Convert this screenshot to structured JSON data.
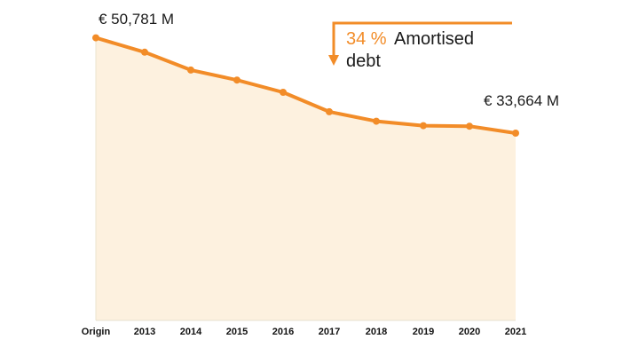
{
  "chart_data": {
    "type": "area",
    "categories": [
      "Origin",
      "2013",
      "2014",
      "2015",
      "2016",
      "2017",
      "2018",
      "2019",
      "2020",
      "2021"
    ],
    "values": [
      50781,
      48200,
      45000,
      43200,
      41000,
      37500,
      35800,
      35000,
      34900,
      33664
    ],
    "ylim": [
      0,
      52000
    ],
    "grid": false,
    "start_label": "€ 50,781 M",
    "end_label": "€ 33,664 M",
    "annotation": {
      "percent": "34 %",
      "text_line1": "Amortised",
      "text_line2": "debt"
    },
    "colors": {
      "line": "#f28c28",
      "area": "#fdf1df",
      "axis": "#e6e1cf"
    }
  }
}
